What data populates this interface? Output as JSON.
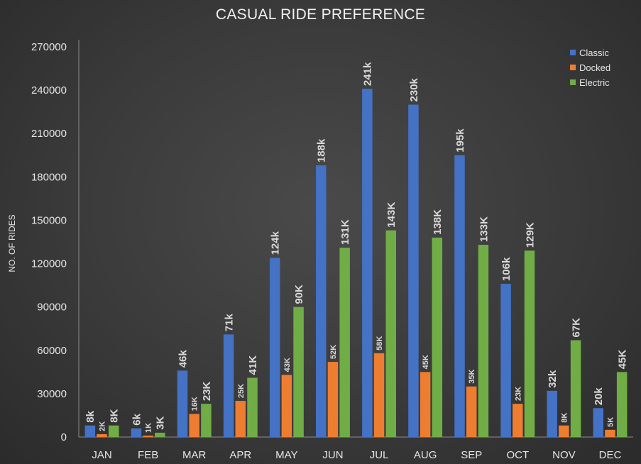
{
  "chart_data": {
    "type": "bar",
    "title": "CASUAL RIDE PREFERENCE",
    "xlabel": "",
    "ylabel": "NO. OF RIDES",
    "ylim": [
      0,
      270000
    ],
    "yticks": [
      0,
      30000,
      60000,
      90000,
      120000,
      150000,
      180000,
      210000,
      240000,
      270000
    ],
    "grid": false,
    "legend_position": "top-right",
    "categories": [
      "JAN",
      "FEB",
      "MAR",
      "APR",
      "MAY",
      "JUN",
      "JUL",
      "AUG",
      "SEP",
      "OCT",
      "NOV",
      "DEC"
    ],
    "series": [
      {
        "name": "Classic",
        "color": "#4472C4",
        "values": [
          8000,
          6000,
          46000,
          71000,
          124000,
          188000,
          241000,
          230000,
          195000,
          106000,
          32000,
          20000
        ],
        "labels": [
          "8k",
          "6k",
          "46k",
          "71k",
          "124k",
          "188k",
          "241k",
          "230k",
          "195k",
          "106k",
          "32k",
          "20k"
        ]
      },
      {
        "name": "Docked",
        "color": "#ED7D31",
        "values": [
          2000,
          1000,
          16000,
          25000,
          43000,
          52000,
          58000,
          45000,
          35000,
          23000,
          8000,
          5000
        ],
        "labels": [
          "2K",
          "1K",
          "16K",
          "25K",
          "43K",
          "52K",
          "58K",
          "45K",
          "35K",
          "23K",
          "8K",
          "5K"
        ]
      },
      {
        "name": "Electric",
        "color": "#70AD47",
        "values": [
          8000,
          3000,
          23000,
          41000,
          90000,
          131000,
          143000,
          138000,
          133000,
          129000,
          67000,
          45000
        ],
        "labels": [
          "8K",
          "3K",
          "23K",
          "41K",
          "90K",
          "131K",
          "143K",
          "138K",
          "133K",
          "129K",
          "67K",
          "45K"
        ]
      }
    ]
  }
}
